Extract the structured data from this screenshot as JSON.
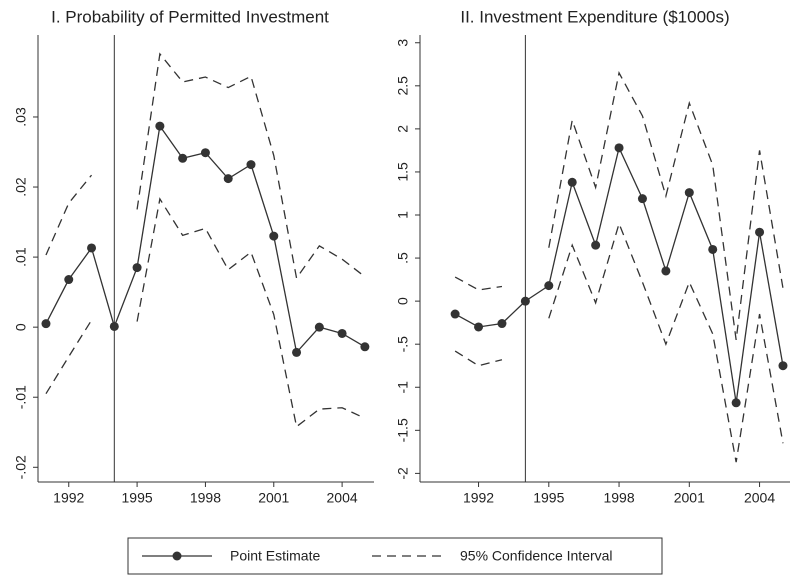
{
  "chart_data": [
    {
      "type": "line",
      "title": "I. Probability of Permitted Investment",
      "x": [
        1991,
        1992,
        1993,
        1994,
        1995,
        1996,
        1997,
        1998,
        1999,
        2000,
        2001,
        2002,
        2003,
        2004,
        2005
      ],
      "series": [
        {
          "name": "Point Estimate",
          "color": "#333333",
          "marker": "circle",
          "values": [
            0.0005,
            0.0068,
            0.0113,
            0.0001,
            0.0085,
            0.0287,
            0.0241,
            0.0249,
            0.0212,
            0.0232,
            0.013,
            -0.0036,
            0.0,
            -0.0009,
            -0.0028
          ]
        },
        {
          "name": "95% Confidence Interval",
          "color": "#333333",
          "dash": true,
          "upper": [
            0.0103,
            0.0177,
            0.0217,
            null,
            0.0168,
            0.039,
            0.035,
            0.0357,
            0.0342,
            0.0358,
            0.0245,
            0.007,
            0.0116,
            0.0097,
            0.0072
          ],
          "lower": [
            -0.0095,
            -0.0042,
            0.001,
            null,
            0.0008,
            0.0183,
            0.0131,
            0.0141,
            0.0082,
            0.0107,
            0.0018,
            -0.0142,
            -0.0117,
            -0.0115,
            -0.013
          ]
        }
      ],
      "xlim": [
        1990.65,
        2005.4
      ],
      "xticks": [
        1992,
        1995,
        1998,
        2001,
        2004
      ],
      "ylim": [
        -0.0221,
        0.0417
      ],
      "yticks": [
        {
          "value": -0.02,
          "label": "-.02"
        },
        {
          "value": -0.01,
          "label": "-.01"
        },
        0,
        {
          "value": 0.01,
          "label": ".01"
        },
        {
          "value": 0.02,
          "label": ".02"
        },
        {
          "value": 0.03,
          "label": ".03"
        }
      ],
      "vline": 1994,
      "legend": "bottom"
    },
    {
      "type": "line",
      "title": "II. Investment Expenditure ($1000s)",
      "x": [
        1991,
        1992,
        1993,
        1994,
        1995,
        1996,
        1997,
        1998,
        1999,
        2000,
        2001,
        2002,
        2003,
        2004,
        2005
      ],
      "series": [
        {
          "name": "Point Estimate",
          "color": "#333333",
          "marker": "circle",
          "values": [
            -0.15,
            -0.3,
            -0.26,
            0,
            0.18,
            1.38,
            0.65,
            1.78,
            1.19,
            0.35,
            1.26,
            0.6,
            -1.18,
            0.8,
            -0.75
          ]
        },
        {
          "name": "95% Confidence Interval",
          "color": "#333333",
          "dash": true,
          "upper": [
            0.28,
            0.13,
            0.17,
            null,
            0.62,
            2.1,
            1.32,
            2.65,
            2.15,
            1.22,
            2.3,
            1.58,
            -0.45,
            1.75,
            0.15
          ],
          "lower": [
            -0.58,
            -0.75,
            -0.68,
            null,
            -0.2,
            0.65,
            -0.02,
            0.9,
            0.22,
            -0.5,
            0.22,
            -0.38,
            -1.87,
            -0.15,
            -1.65
          ]
        }
      ],
      "xlim": [
        1989.5,
        2005.3
      ],
      "xticks": [
        1992,
        1995,
        1998,
        2001,
        2004
      ],
      "ylim": [
        -2.1,
        3.09
      ],
      "yticks": [
        -2,
        {
          "value": -1.5,
          "label": "-1.5"
        },
        -1,
        {
          "value": -0.5,
          "label": "-.5"
        },
        0,
        {
          "value": 0.5,
          "label": ".5"
        },
        1,
        1.5,
        2,
        2.5,
        3
      ],
      "vline": 1994
    }
  ]
}
